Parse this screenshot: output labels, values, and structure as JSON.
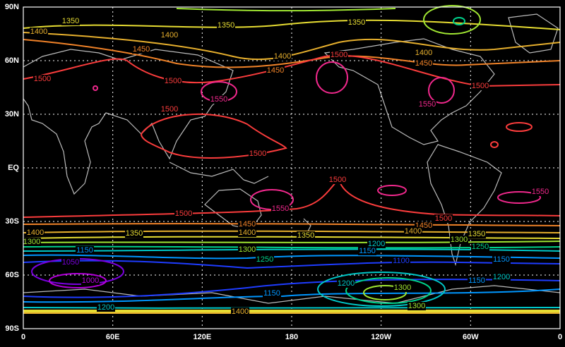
{
  "map": {
    "lat_labels": [
      "90N",
      "60N",
      "30N",
      "EQ",
      "30S",
      "60S",
      "90S"
    ],
    "lon_labels": [
      "0",
      "60E",
      "120E",
      "180",
      "120W",
      "60W",
      "0"
    ],
    "levels": [
      {
        "value": 1000,
        "color": "#b400dc"
      },
      {
        "value": 1050,
        "color": "#7800dc"
      },
      {
        "value": 1100,
        "color": "#1e3cff"
      },
      {
        "value": 1150,
        "color": "#0096ff"
      },
      {
        "value": 1200,
        "color": "#00c8c8"
      },
      {
        "value": 1250,
        "color": "#00d28c"
      },
      {
        "value": 1300,
        "color": "#a0e632"
      },
      {
        "value": 1350,
        "color": "#e6dc32"
      },
      {
        "value": 1400,
        "color": "#e6af2d"
      },
      {
        "value": 1450,
        "color": "#f08228"
      },
      {
        "value": 1500,
        "color": "#fa3c3c"
      },
      {
        "value": 1550,
        "color": "#f0288c"
      }
    ]
  }
}
